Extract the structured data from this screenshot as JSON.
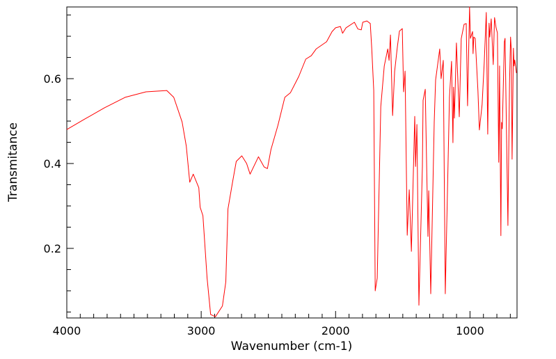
{
  "chart_data": {
    "type": "line",
    "title": "",
    "xlabel": "Wavenumber (cm-1)",
    "ylabel": "Transmitance",
    "xlim": [
      4000,
      650
    ],
    "ylim": [
      0.036,
      0.769
    ],
    "x_reversed": true,
    "grid": false,
    "x_ticks": [
      4000,
      3000,
      2000,
      1000
    ],
    "x_tick_labels": [
      "4000",
      "3000",
      "2000",
      "1000"
    ],
    "x_minor_step": 100,
    "y_ticks": [
      0.2,
      0.4,
      0.6
    ],
    "y_tick_labels": [
      "0.2",
      "0.4",
      "0.6"
    ],
    "y_minor_step": 0.05,
    "series": [
      {
        "name": "IR spectrum",
        "color": "#ff0000",
        "points": [
          [
            4000,
            0.48
          ],
          [
            3876,
            0.503
          ],
          [
            3721,
            0.531
          ],
          [
            3566,
            0.556
          ],
          [
            3411,
            0.569
          ],
          [
            3256,
            0.572
          ],
          [
            3204,
            0.556
          ],
          [
            3142,
            0.498
          ],
          [
            3111,
            0.441
          ],
          [
            3085,
            0.356
          ],
          [
            3059,
            0.375
          ],
          [
            3018,
            0.343
          ],
          [
            3008,
            0.297
          ],
          [
            2987,
            0.277
          ],
          [
            2956,
            0.13
          ],
          [
            2930,
            0.044
          ],
          [
            2894,
            0.039
          ],
          [
            2842,
            0.064
          ],
          [
            2817,
            0.121
          ],
          [
            2801,
            0.293
          ],
          [
            2765,
            0.359
          ],
          [
            2739,
            0.405
          ],
          [
            2698,
            0.418
          ],
          [
            2662,
            0.4
          ],
          [
            2636,
            0.375
          ],
          [
            2574,
            0.416
          ],
          [
            2532,
            0.392
          ],
          [
            2507,
            0.388
          ],
          [
            2481,
            0.433
          ],
          [
            2429,
            0.49
          ],
          [
            2378,
            0.556
          ],
          [
            2336,
            0.567
          ],
          [
            2274,
            0.605
          ],
          [
            2222,
            0.646
          ],
          [
            2181,
            0.654
          ],
          [
            2145,
            0.67
          ],
          [
            2067,
            0.687
          ],
          [
            2026,
            0.711
          ],
          [
            2000,
            0.72
          ],
          [
            1964,
            0.723
          ],
          [
            1948,
            0.707
          ],
          [
            1922,
            0.72
          ],
          [
            1860,
            0.733
          ],
          [
            1834,
            0.717
          ],
          [
            1809,
            0.715
          ],
          [
            1798,
            0.733
          ],
          [
            1767,
            0.736
          ],
          [
            1742,
            0.73
          ],
          [
            1731,
            0.672
          ],
          [
            1716,
            0.572
          ],
          [
            1705,
            0.1
          ],
          [
            1690,
            0.13
          ],
          [
            1664,
            0.534
          ],
          [
            1638,
            0.63
          ],
          [
            1612,
            0.67
          ],
          [
            1602,
            0.643
          ],
          [
            1592,
            0.703
          ],
          [
            1576,
            0.513
          ],
          [
            1561,
            0.617
          ],
          [
            1540,
            0.676
          ],
          [
            1525,
            0.712
          ],
          [
            1504,
            0.718
          ],
          [
            1494,
            0.569
          ],
          [
            1483,
            0.618
          ],
          [
            1467,
            0.231
          ],
          [
            1452,
            0.338
          ],
          [
            1436,
            0.193
          ],
          [
            1411,
            0.511
          ],
          [
            1405,
            0.393
          ],
          [
            1395,
            0.492
          ],
          [
            1380,
            0.066
          ],
          [
            1354,
            0.393
          ],
          [
            1349,
            0.549
          ],
          [
            1333,
            0.575
          ],
          [
            1313,
            0.228
          ],
          [
            1307,
            0.336
          ],
          [
            1292,
            0.093
          ],
          [
            1266,
            0.498
          ],
          [
            1256,
            0.597
          ],
          [
            1225,
            0.67
          ],
          [
            1215,
            0.6
          ],
          [
            1199,
            0.643
          ],
          [
            1184,
            0.093
          ],
          [
            1153,
            0.556
          ],
          [
            1137,
            0.641
          ],
          [
            1127,
            0.449
          ],
          [
            1122,
            0.58
          ],
          [
            1116,
            0.507
          ],
          [
            1101,
            0.684
          ],
          [
            1080,
            0.51
          ],
          [
            1065,
            0.694
          ],
          [
            1044,
            0.728
          ],
          [
            1028,
            0.73
          ],
          [
            1018,
            0.536
          ],
          [
            1003,
            0.769
          ],
          [
            997,
            0.695
          ],
          [
            981,
            0.711
          ],
          [
            977,
            0.659
          ],
          [
            972,
            0.698
          ],
          [
            961,
            0.695
          ],
          [
            941,
            0.572
          ],
          [
            930,
            0.479
          ],
          [
            910,
            0.539
          ],
          [
            894,
            0.639
          ],
          [
            879,
            0.756
          ],
          [
            868,
            0.469
          ],
          [
            858,
            0.731
          ],
          [
            853,
            0.698
          ],
          [
            842,
            0.741
          ],
          [
            827,
            0.633
          ],
          [
            817,
            0.744
          ],
          [
            806,
            0.72
          ],
          [
            796,
            0.708
          ],
          [
            786,
            0.403
          ],
          [
            780,
            0.63
          ],
          [
            770,
            0.23
          ],
          [
            765,
            0.497
          ],
          [
            760,
            0.482
          ],
          [
            744,
            0.687
          ],
          [
            739,
            0.695
          ],
          [
            718,
            0.254
          ],
          [
            706,
            0.589
          ],
          [
            698,
            0.698
          ],
          [
            693,
            0.67
          ],
          [
            687,
            0.41
          ],
          [
            677,
            0.672
          ],
          [
            672,
            0.63
          ],
          [
            667,
            0.644
          ],
          [
            654,
            0.613
          ]
        ]
      }
    ]
  }
}
